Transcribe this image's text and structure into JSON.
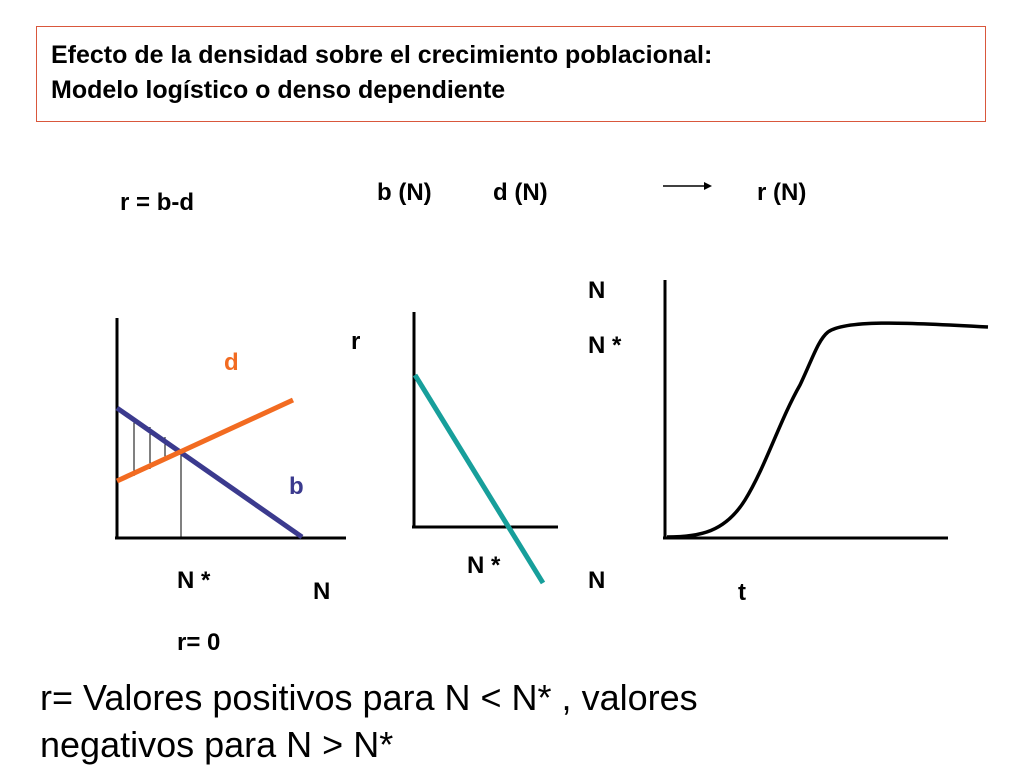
{
  "title": {
    "line1": "Efecto de la densidad sobre el crecimiento poblacional:",
    "line2": "Modelo logístico o denso dependiente"
  },
  "top_labels": {
    "r_eq": "r = b-d",
    "bN": "b (N)",
    "dN": "d (N)",
    "rN": "r (N)"
  },
  "graph1": {
    "d_label": "d",
    "b_label": "b",
    "nstar_label": "N *",
    "n_label": "N",
    "r0_label": "r= 0"
  },
  "graph2": {
    "r_label": "r",
    "nstar_label": "N *",
    "n_label": "N"
  },
  "graph3": {
    "n_label": "N",
    "nstar_label": "N *",
    "t_label": "t"
  },
  "bottom": {
    "line1": "r=  Valores positivos para N < N* , valores",
    "line2": "negativos para N > N*"
  },
  "colors": {
    "title_border": "#d9573c",
    "d_line": "#f26b21",
    "b_line": "#3b3a8e",
    "r_line": "#179f9b",
    "axes": "#000000"
  }
}
